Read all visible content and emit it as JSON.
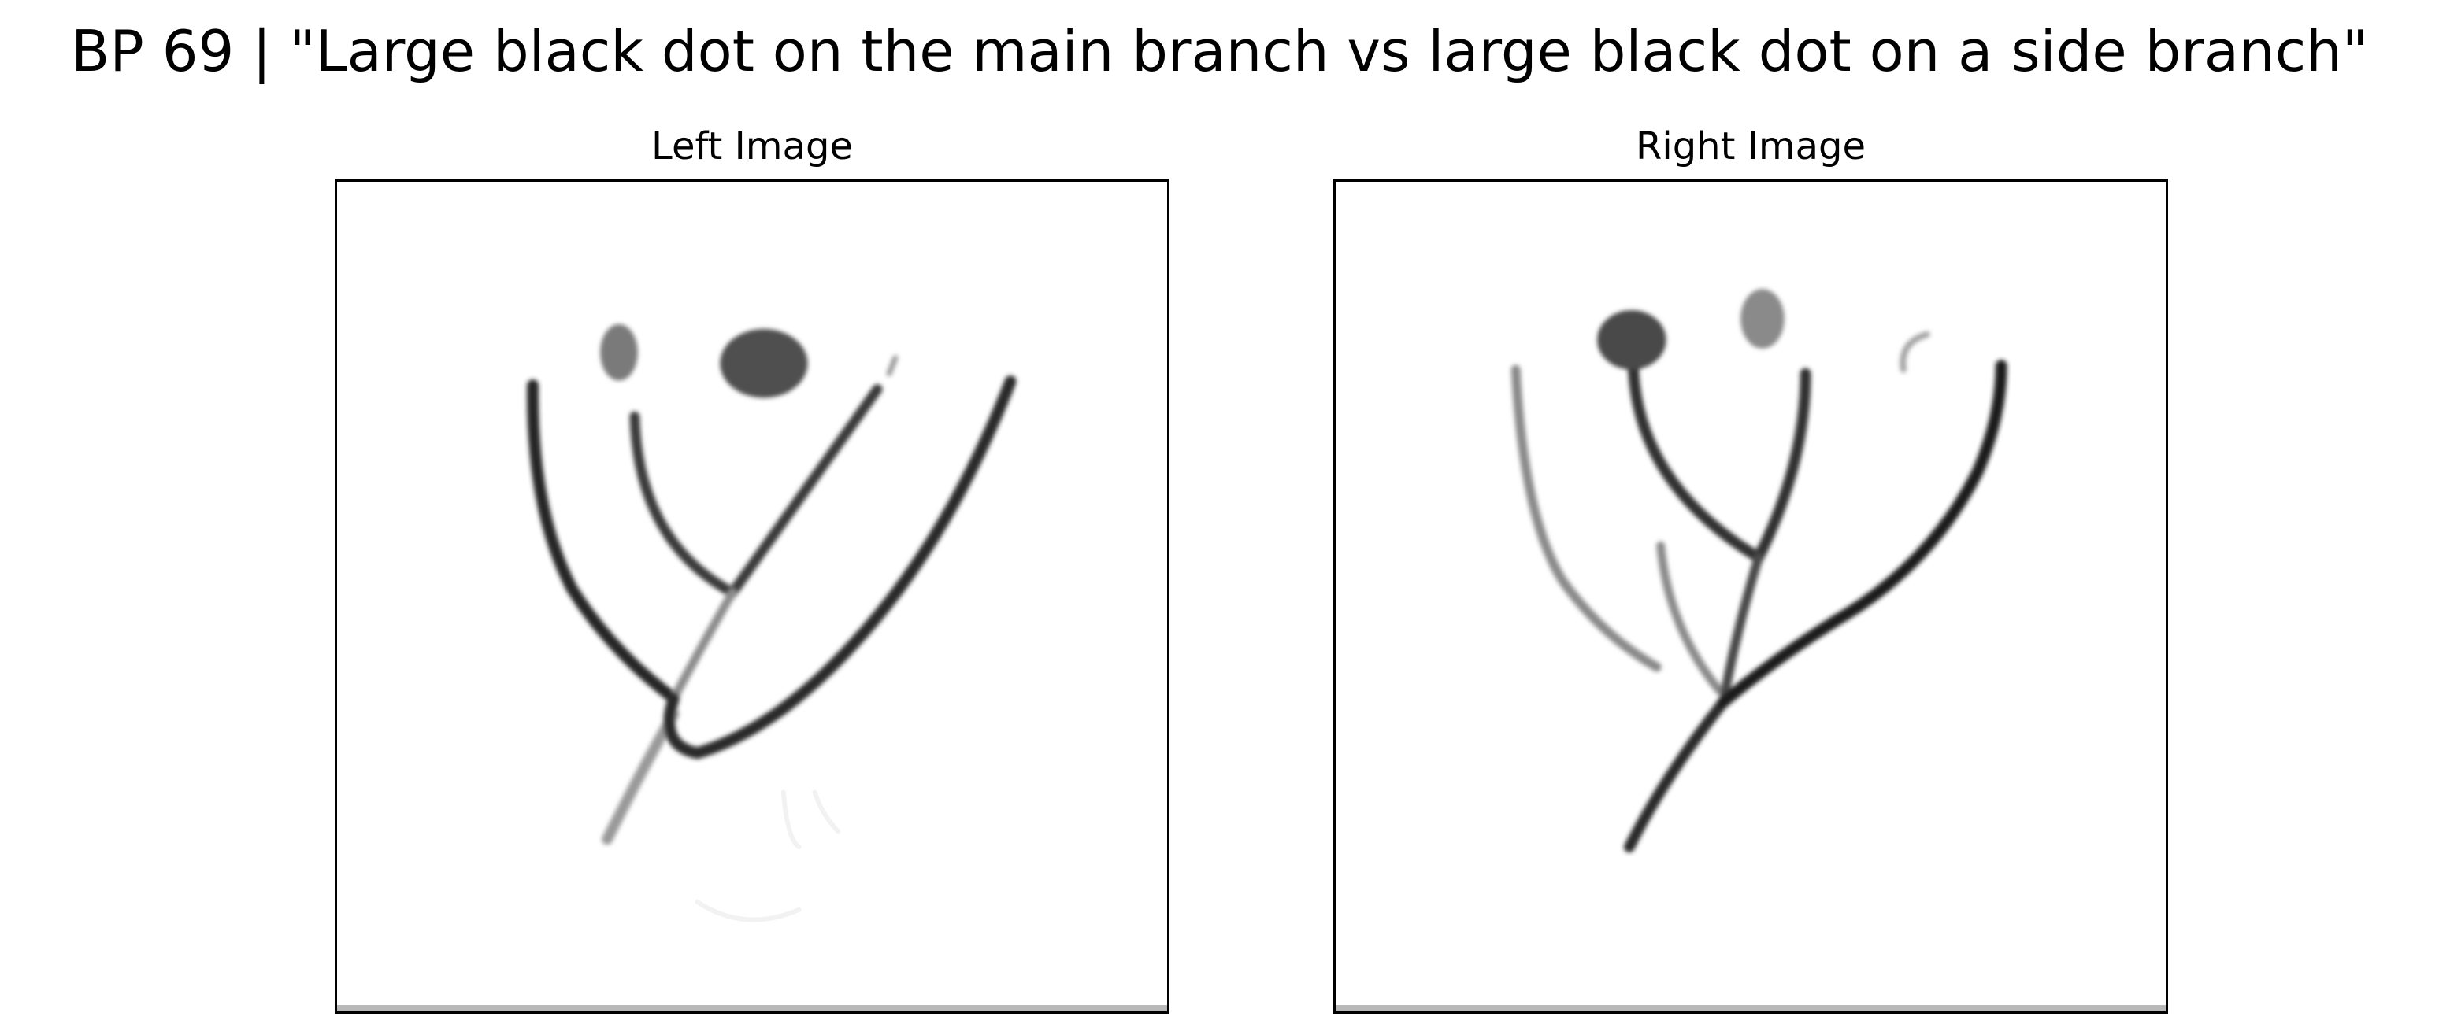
{
  "figure": {
    "title": "BP 69 | \"Large black dot on the main branch vs large black dot on a side branch\""
  },
  "panels": {
    "left": {
      "title": "Left Image"
    },
    "right": {
      "title": "Right Image"
    }
  },
  "colors": {
    "stroke_dark": "#1e1e1e",
    "stroke_mid": "#4a4a4a",
    "stroke_light": "#9a9a9a",
    "dot_dark": "#505050",
    "dot_light": "#8a8a8a",
    "frame": "#000000",
    "background": "#ffffff"
  }
}
